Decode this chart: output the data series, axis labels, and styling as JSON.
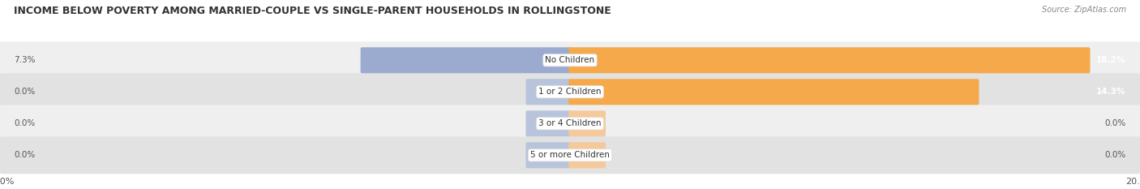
{
  "title": "INCOME BELOW POVERTY AMONG MARRIED-COUPLE VS SINGLE-PARENT HOUSEHOLDS IN ROLLINGSTONE",
  "source": "Source: ZipAtlas.com",
  "categories": [
    "No Children",
    "1 or 2 Children",
    "3 or 4 Children",
    "5 or more Children"
  ],
  "married_values": [
    7.3,
    0.0,
    0.0,
    0.0
  ],
  "single_values": [
    18.2,
    14.3,
    0.0,
    0.0
  ],
  "married_stub": [
    0.0,
    1.5,
    1.5,
    1.5
  ],
  "single_stub": [
    0.0,
    0.0,
    1.2,
    1.2
  ],
  "xlim": 20.0,
  "married_color": "#9BAACF",
  "married_stub_color": "#B8C4DC",
  "single_color": "#F5A94A",
  "single_stub_color": "#F5C99A",
  "row_bg_even": "#EFEFEF",
  "row_bg_odd": "#E2E2E2",
  "title_fontsize": 9,
  "label_fontsize": 7.5,
  "cat_fontsize": 7.5,
  "tick_fontsize": 8,
  "legend_fontsize": 8,
  "figsize": [
    14.06,
    2.33
  ],
  "dpi": 100
}
